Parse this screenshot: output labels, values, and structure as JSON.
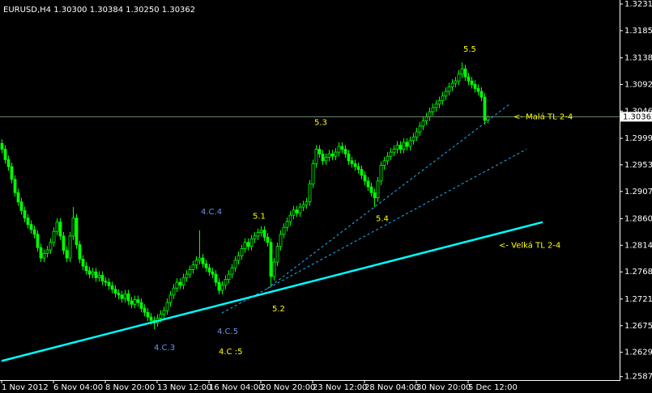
{
  "chart_data": {
    "type": "candlestick",
    "title": "EURUSD,H4 1.30300 1.30384 1.30250 1.30362",
    "ylim": [
      1.2581,
      1.3238
    ],
    "yticks": [
      {
        "value": 1.3231,
        "label": "1.32310"
      },
      {
        "value": 1.3185,
        "label": "1.31850"
      },
      {
        "value": 1.3138,
        "label": "1.31380"
      },
      {
        "value": 1.3092,
        "label": "1.30920"
      },
      {
        "value": 1.3046,
        "label": "1.30460"
      },
      {
        "value": 1.2999,
        "label": "1.29990"
      },
      {
        "value": 1.2953,
        "label": "1.29530"
      },
      {
        "value": 1.2907,
        "label": "1.29070"
      },
      {
        "value": 1.286,
        "label": "1.28600"
      },
      {
        "value": 1.2814,
        "label": "1.28140"
      },
      {
        "value": 1.2768,
        "label": "1.27680"
      },
      {
        "value": 1.2721,
        "label": "1.27210"
      },
      {
        "value": 1.2675,
        "label": "1.26750"
      },
      {
        "value": 1.2629,
        "label": "1.26290"
      },
      {
        "value": 1.2587,
        "label": "1.25870"
      }
    ],
    "xticks": [
      {
        "value": 0,
        "label": "1 Nov 2012"
      },
      {
        "value": 16,
        "label": "6 Nov 04:00"
      },
      {
        "value": 32,
        "label": "8 Nov 20:00"
      },
      {
        "value": 48,
        "label": "13 Nov 12:00"
      },
      {
        "value": 64,
        "label": "16 Nov 04:00"
      },
      {
        "value": 80,
        "label": "20 Nov 20:00"
      },
      {
        "value": 96,
        "label": "23 Nov 12:00"
      },
      {
        "value": 112,
        "label": "28 Nov 04:00"
      },
      {
        "value": 128,
        "label": "30 Nov 20:00"
      },
      {
        "value": 144,
        "label": "5 Dec 12:00"
      }
    ],
    "current_price": 1.30362,
    "bar_color": "#00ff00",
    "bull_fill": "#000000",
    "bear_fill": "#00ff00",
    "open": [
      1.299,
      1.298,
      1.2962,
      1.295,
      1.2928,
      1.2905,
      1.2889,
      1.2874,
      1.2861,
      1.285,
      1.2841,
      1.2833,
      1.281,
      1.2792,
      1.28,
      1.2806,
      1.2819,
      1.2838,
      1.2854,
      1.283,
      1.2805,
      1.2792,
      1.283,
      1.2861,
      1.2815,
      1.279,
      1.2778,
      1.277,
      1.2764,
      1.2768,
      1.2758,
      1.2762,
      1.2752,
      1.275,
      1.2744,
      1.2738,
      1.2731,
      1.2728,
      1.2722,
      1.273,
      1.2718,
      1.2712,
      1.272,
      1.2715,
      1.2705,
      1.2698,
      1.269,
      1.2684,
      1.268,
      1.2688,
      1.2695,
      1.2701,
      1.2715,
      1.2728,
      1.274,
      1.275,
      1.2745,
      1.2758,
      1.2764,
      1.2772,
      1.278,
      1.2788,
      1.2792,
      1.2782,
      1.2775,
      1.2768,
      1.2764,
      1.275,
      1.2736,
      1.2745,
      1.2755,
      1.2764,
      1.2775,
      1.2788,
      1.2796,
      1.2808,
      1.2819,
      1.2812,
      1.2825,
      1.283,
      1.2836,
      1.284,
      1.2828,
      1.2819,
      1.276,
      1.2785,
      1.2812,
      1.2833,
      1.2845,
      1.2855,
      1.2866,
      1.2875,
      1.287,
      1.288,
      1.2884,
      1.2889,
      1.292,
      1.2955,
      1.298,
      1.2972,
      1.296,
      1.2966,
      1.2972,
      1.2968,
      1.2975,
      1.2985,
      1.298,
      1.2972,
      1.296,
      1.2955,
      1.295,
      1.2945,
      1.2935,
      1.2925,
      1.2915,
      1.2905,
      1.2896,
      1.2925,
      1.2952,
      1.296,
      1.2968,
      1.2975,
      1.298,
      1.2987,
      1.298,
      1.2992,
      1.2985,
      1.2995,
      1.3001,
      1.301,
      1.302,
      1.3029,
      1.3036,
      1.3045,
      1.3052,
      1.3058,
      1.3064,
      1.3072,
      1.308,
      1.3088,
      1.3094,
      1.3098,
      1.311,
      1.3119,
      1.3105,
      1.3098,
      1.3092,
      1.3085,
      1.308,
      1.307,
      1.303
    ],
    "high": [
      1.2997,
      1.2987,
      1.2969,
      1.2957,
      1.2935,
      1.2912,
      1.2896,
      1.2881,
      1.2868,
      1.2857,
      1.2848,
      1.284,
      1.2817,
      1.2807,
      1.2813,
      1.2826,
      1.2845,
      1.2861,
      1.2861,
      1.2837,
      1.2812,
      1.2837,
      1.288,
      1.2868,
      1.2822,
      1.2797,
      1.2785,
      1.2777,
      1.2775,
      1.2775,
      1.2769,
      1.2769,
      1.2759,
      1.2757,
      1.2751,
      1.2745,
      1.2738,
      1.2735,
      1.2737,
      1.2737,
      1.2725,
      1.2727,
      1.2727,
      1.2722,
      1.2712,
      1.2705,
      1.2697,
      1.2691,
      1.2695,
      1.2702,
      1.2708,
      1.2722,
      1.2735,
      1.2747,
      1.2757,
      1.2757,
      1.2765,
      1.2771,
      1.2779,
      1.2787,
      1.2795,
      1.284,
      1.2799,
      1.2789,
      1.2782,
      1.2775,
      1.2771,
      1.2757,
      1.2752,
      1.2762,
      1.2771,
      1.2782,
      1.2795,
      1.2803,
      1.2815,
      1.2826,
      1.2826,
      1.2832,
      1.2837,
      1.2843,
      1.2847,
      1.2847,
      1.2835,
      1.2826,
      1.2792,
      1.2819,
      1.284,
      1.2852,
      1.2862,
      1.2873,
      1.2882,
      1.2882,
      1.2887,
      1.2891,
      1.2896,
      1.2927,
      1.2962,
      1.2987,
      1.2987,
      1.2979,
      1.2973,
      1.2979,
      1.2979,
      1.2982,
      1.2992,
      1.2992,
      1.2987,
      1.2979,
      1.2967,
      1.2962,
      1.2957,
      1.2952,
      1.2942,
      1.2932,
      1.2922,
      1.2912,
      1.2932,
      1.2959,
      1.2967,
      1.2975,
      1.2982,
      1.2987,
      1.2994,
      1.2994,
      1.2999,
      1.2999,
      1.3002,
      1.3008,
      1.3017,
      1.3027,
      1.3036,
      1.3043,
      1.3052,
      1.3059,
      1.3065,
      1.3071,
      1.3079,
      1.3087,
      1.3095,
      1.3101,
      1.3105,
      1.3117,
      1.313,
      1.3126,
      1.3112,
      1.3105,
      1.3099,
      1.3092,
      1.3087,
      1.3077,
      1.30384
    ],
    "low": [
      1.2973,
      1.2955,
      1.2943,
      1.2921,
      1.2898,
      1.2882,
      1.2867,
      1.2854,
      1.2843,
      1.2834,
      1.2826,
      1.2803,
      1.2785,
      1.2785,
      1.2793,
      1.2799,
      1.2812,
      1.2831,
      1.2823,
      1.2798,
      1.2785,
      1.2785,
      1.2823,
      1.2808,
      1.2783,
      1.2771,
      1.2763,
      1.2757,
      1.2757,
      1.2751,
      1.2751,
      1.2745,
      1.2743,
      1.2737,
      1.2731,
      1.2724,
      1.2721,
      1.2715,
      1.2715,
      1.2711,
      1.2705,
      1.2705,
      1.2708,
      1.2698,
      1.2691,
      1.2683,
      1.2677,
      1.2669,
      1.2673,
      1.2681,
      1.2688,
      1.2694,
      1.2708,
      1.2721,
      1.2733,
      1.2738,
      1.2738,
      1.2751,
      1.2757,
      1.2765,
      1.2773,
      1.2781,
      1.2775,
      1.2768,
      1.2761,
      1.2757,
      1.2743,
      1.2729,
      1.2729,
      1.2738,
      1.2748,
      1.2757,
      1.2768,
      1.2781,
      1.2789,
      1.2801,
      1.2805,
      1.2805,
      1.2818,
      1.2823,
      1.2829,
      1.2821,
      1.2812,
      1.2743,
      1.2753,
      1.2778,
      1.2805,
      1.2826,
      1.2838,
      1.2848,
      1.2859,
      1.2863,
      1.2863,
      1.2873,
      1.2877,
      1.2882,
      1.2913,
      1.2948,
      1.2965,
      1.2953,
      1.2953,
      1.2959,
      1.2961,
      1.2961,
      1.2968,
      1.2973,
      1.2965,
      1.2953,
      1.2948,
      1.2943,
      1.2938,
      1.2928,
      1.2918,
      1.2908,
      1.2898,
      1.288,
      1.2889,
      1.2918,
      1.2945,
      1.2953,
      1.2961,
      1.2968,
      1.2973,
      1.2973,
      1.2973,
      1.2978,
      1.2978,
      1.2988,
      1.2994,
      1.3003,
      1.3013,
      1.3022,
      1.3029,
      1.3038,
      1.3045,
      1.3051,
      1.3057,
      1.3065,
      1.3073,
      1.3081,
      1.3087,
      1.3091,
      1.3103,
      1.3098,
      1.3091,
      1.3085,
      1.3078,
      1.3073,
      1.3063,
      1.3023,
      1.3025
    ],
    "close": [
      1.298,
      1.2962,
      1.295,
      1.2928,
      1.2905,
      1.2889,
      1.2874,
      1.2861,
      1.285,
      1.2841,
      1.2833,
      1.281,
      1.2792,
      1.28,
      1.2806,
      1.2819,
      1.2838,
      1.2854,
      1.283,
      1.2805,
      1.2792,
      1.283,
      1.2861,
      1.2815,
      1.279,
      1.2778,
      1.277,
      1.2764,
      1.2768,
      1.2758,
      1.2762,
      1.2752,
      1.275,
      1.2744,
      1.2738,
      1.2731,
      1.2728,
      1.2722,
      1.273,
      1.2718,
      1.2712,
      1.272,
      1.2715,
      1.2705,
      1.2698,
      1.269,
      1.2684,
      1.268,
      1.2688,
      1.2695,
      1.2701,
      1.2715,
      1.2728,
      1.274,
      1.275,
      1.2745,
      1.2758,
      1.2764,
      1.2772,
      1.278,
      1.2788,
      1.2792,
      1.2782,
      1.2775,
      1.2768,
      1.2764,
      1.275,
      1.2736,
      1.2745,
      1.2755,
      1.2764,
      1.2775,
      1.2788,
      1.2796,
      1.2808,
      1.2819,
      1.2812,
      1.2825,
      1.283,
      1.2836,
      1.284,
      1.2828,
      1.2819,
      1.276,
      1.2785,
      1.2812,
      1.2833,
      1.2845,
      1.2855,
      1.2866,
      1.2875,
      1.287,
      1.288,
      1.2884,
      1.2889,
      1.292,
      1.2955,
      1.298,
      1.2972,
      1.296,
      1.2966,
      1.2972,
      1.2968,
      1.2975,
      1.2985,
      1.298,
      1.2972,
      1.296,
      1.2955,
      1.295,
      1.2945,
      1.2935,
      1.2925,
      1.2915,
      1.2905,
      1.2896,
      1.2925,
      1.2952,
      1.296,
      1.2968,
      1.2975,
      1.298,
      1.2987,
      1.298,
      1.2992,
      1.2985,
      1.2995,
      1.3001,
      1.301,
      1.302,
      1.3029,
      1.3036,
      1.3045,
      1.3052,
      1.3058,
      1.3064,
      1.3072,
      1.308,
      1.3088,
      1.3094,
      1.3098,
      1.311,
      1.3119,
      1.3105,
      1.3098,
      1.3092,
      1.3085,
      1.308,
      1.307,
      1.303,
      1.30362
    ],
    "trendlines": [
      {
        "x": [
          0,
          167
        ],
        "y": [
          1.2614,
          1.2854
        ],
        "color": "#00ffff",
        "width": 2.5,
        "style": "solid"
      },
      {
        "x": [
          82,
          157
        ],
        "y": [
          1.2739,
          1.3059
        ],
        "color": "#1eb4ff",
        "width": 1,
        "style": "dashed"
      },
      {
        "x": [
          68,
          162
        ],
        "y": [
          1.2697,
          1.298
        ],
        "color": "#1eb4ff",
        "width": 1,
        "style": "dashed"
      }
    ],
    "annotations": [
      {
        "text": "5.5",
        "x": 142.5,
        "y": 1.3153,
        "color": "#ffff00"
      },
      {
        "text": "5.3",
        "x": 96.5,
        "y": 1.3026,
        "color": "#ffff00"
      },
      {
        "text": "5.1",
        "x": 77.5,
        "y": 1.2864,
        "color": "#ffff00"
      },
      {
        "text": "4.C.4",
        "x": 61.5,
        "y": 1.2872,
        "color": "#6495ed"
      },
      {
        "text": "5.4",
        "x": 115.5,
        "y": 1.286,
        "color": "#ffff00"
      },
      {
        "text": "5.2",
        "x": 83.5,
        "y": 1.2704,
        "color": "#ffff00"
      },
      {
        "text": "4.C.5",
        "x": 66.5,
        "y": 1.2665,
        "color": "#6495ed"
      },
      {
        "text": "4.C.3",
        "x": 47,
        "y": 1.2637,
        "color": "#6495ed"
      },
      {
        "text": "4.C :5",
        "x": 67,
        "y": 1.263,
        "color": "#ffff00"
      },
      {
        "text": "<- Malá TL 2-4",
        "x": 158,
        "y": 1.3036,
        "color": "#ffff00"
      },
      {
        "text": "<- Velká TL 2-4",
        "x": 153.5,
        "y": 1.2814,
        "color": "#ffff00"
      }
    ]
  }
}
